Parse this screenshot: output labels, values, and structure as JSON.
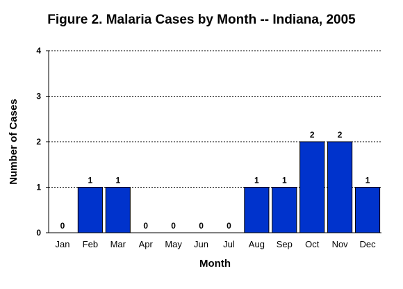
{
  "chart_data": {
    "type": "bar",
    "title": "Figure 2. Malaria Cases by Month -- Indiana, 2005",
    "xlabel": "Month",
    "ylabel": "Number of Cases",
    "categories": [
      "Jan",
      "Feb",
      "Mar",
      "Apr",
      "May",
      "Jun",
      "Jul",
      "Aug",
      "Sep",
      "Oct",
      "Nov",
      "Dec"
    ],
    "values": [
      0,
      1,
      1,
      0,
      0,
      0,
      0,
      1,
      1,
      2,
      2,
      1
    ],
    "data_labels": [
      "0",
      "1",
      "1",
      "0",
      "0",
      "0",
      "0",
      "1",
      "1",
      "2",
      "2",
      "1"
    ],
    "ylim": [
      0,
      4
    ],
    "yticks": [
      "0",
      "1",
      "2",
      "3",
      "4"
    ],
    "grid": "horizontal dotted",
    "bar_color": "#0033cc"
  }
}
